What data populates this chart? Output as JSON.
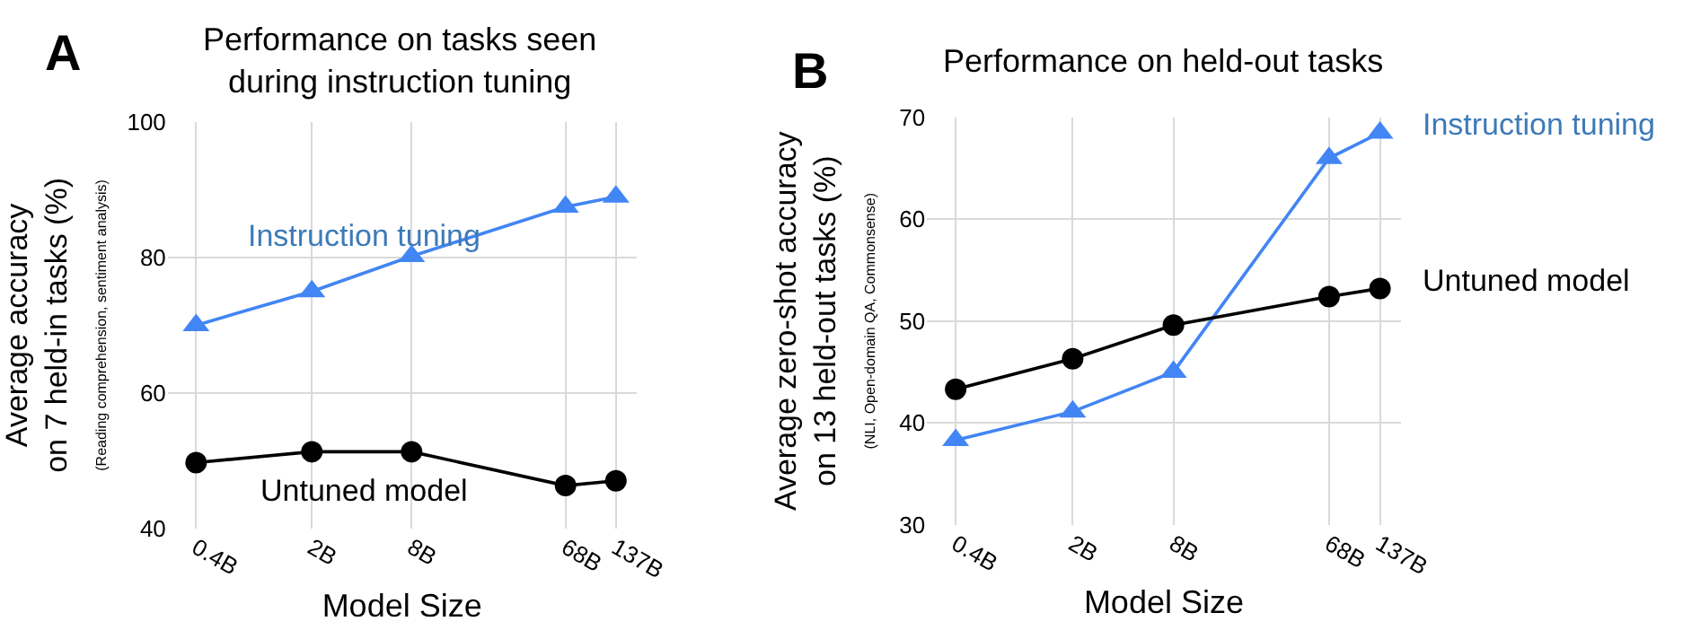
{
  "chart_data": [
    {
      "type": "line",
      "title": "Performance on tasks seen\nduring instruction tuning",
      "annotations": [
        "A"
      ],
      "xlabel": "Model Size",
      "ylabel": "Average accuracy\non 7 held-in tasks (%)\n(Reading comprehension, sentiment analysis)",
      "log": "x",
      "x": [
        0.4,
        2,
        8,
        68,
        137
      ],
      "xlim": [
        0.27,
        182
      ],
      "xticks": [
        {
          "value": 0.4,
          "label": "0.4B"
        },
        {
          "value": 2,
          "label": "2B"
        },
        {
          "value": 8,
          "label": "8B"
        },
        {
          "value": 68,
          "label": "68B"
        },
        {
          "value": 137,
          "label": "137B"
        }
      ],
      "ylim": [
        40,
        100
      ],
      "yticks": [
        40,
        60,
        80,
        100
      ],
      "grid": true,
      "legend": false,
      "series": [
        {
          "name": "Instruction tuning",
          "color": "#4285f4",
          "marker": "triangle",
          "values": [
            70,
            75,
            80.2,
            87.5,
            89
          ]
        },
        {
          "name": "Untuned model",
          "color": "#000000",
          "marker": "circle",
          "values": [
            49.7,
            51.3,
            51.3,
            46.3,
            47
          ]
        }
      ]
    },
    {
      "type": "line",
      "title": "Performance on held-out tasks",
      "annotations": [
        "B"
      ],
      "xlabel": "Model Size",
      "ylabel": "Average zero-shot accuracy\non 13 held-out tasks (%)\n(NLI, Open-domain QA, Commonsense)",
      "log": "x",
      "x": [
        0.4,
        2,
        8,
        68,
        137
      ],
      "xlim": [
        0.27,
        182
      ],
      "xticks": [
        {
          "value": 0.4,
          "label": "0.4B"
        },
        {
          "value": 2,
          "label": "2B"
        },
        {
          "value": 8,
          "label": "8B"
        },
        {
          "value": 68,
          "label": "68B"
        },
        {
          "value": 137,
          "label": "137B"
        }
      ],
      "ylim": [
        30,
        70
      ],
      "yticks": [
        30,
        40,
        50,
        60,
        70
      ],
      "grid": true,
      "legend": false,
      "series": [
        {
          "name": "Instruction tuning",
          "color": "#4285f4",
          "marker": "triangle",
          "values": [
            38.3,
            41.1,
            45,
            66,
            68.5
          ]
        },
        {
          "name": "Untuned model",
          "color": "#000000",
          "marker": "circle",
          "values": [
            43.3,
            46.3,
            49.6,
            52.4,
            53.2
          ]
        }
      ]
    }
  ]
}
